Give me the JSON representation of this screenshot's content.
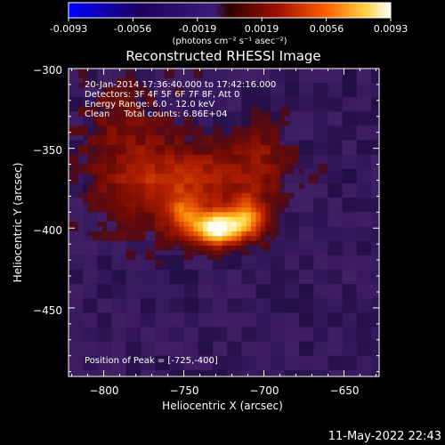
{
  "colorbar": {
    "tick_labels": [
      "-0.0093",
      "-0.0056",
      "-0.0019",
      "0.0019",
      "0.0056",
      "0.0093"
    ],
    "unit_label": "(photons cm⁻² s⁻¹ asec⁻²)",
    "range": [
      -0.0093,
      0.0093
    ]
  },
  "chart_data": {
    "type": "heatmap",
    "title": "Reconstructed RHESSI Image",
    "xlabel": "Heliocentric X (arcsec)",
    "ylabel": "Heliocentric Y (arcsec)",
    "xlim": [
      -822,
      -628
    ],
    "ylim": [
      -493,
      -300
    ],
    "x_ticks": [
      -800,
      -750,
      -700,
      -650
    ],
    "y_ticks": [
      -300,
      -350,
      -400,
      -450
    ],
    "x_tick_labels": [
      "−800",
      "−750",
      "−700",
      "−650"
    ],
    "y_tick_labels": [
      "−300",
      "−350",
      "−400",
      "−450"
    ],
    "info_lines": [
      "20-Jan-2014 17:36:40.000 to 17:42:16.000",
      "Detectors: 3F 4F 5F 6F 7F 8F, Att 0",
      "Energy Range: 6.0 - 12.0 keV",
      "Clean     Total counts: 6.86E+04"
    ],
    "peak_label": "Position of Peak = [-725,-400]",
    "peak": {
      "x": -725,
      "y": -400
    },
    "features": [
      {
        "x": -728,
        "y": -400,
        "sx": 10,
        "sy": 7,
        "amp": 1.0
      },
      {
        "x": -710,
        "y": -393,
        "sx": 8,
        "sy": 9,
        "amp": 0.55
      },
      {
        "x": -748,
        "y": -392,
        "sx": 8,
        "sy": 9,
        "amp": 0.4
      },
      {
        "x": -768,
        "y": -375,
        "sx": 24,
        "sy": 20,
        "amp": 0.24
      },
      {
        "x": -730,
        "y": -368,
        "sx": 28,
        "sy": 14,
        "amp": 0.2
      },
      {
        "x": -790,
        "y": -335,
        "sx": 18,
        "sy": 22,
        "amp": 0.15
      },
      {
        "x": -700,
        "y": -355,
        "sx": 12,
        "sy": 15,
        "amp": 0.14
      }
    ]
  },
  "timestamp": "11-May-2022 22:43"
}
